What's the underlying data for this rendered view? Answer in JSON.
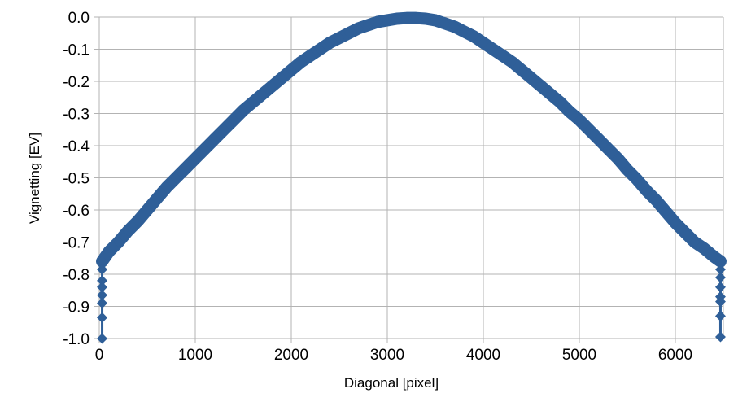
{
  "chart_data": {
    "type": "scatter",
    "title": "",
    "xlabel": "Diagonal [pixel]",
    "ylabel": "Vignetting [EV]",
    "xlim": [
      0,
      6500
    ],
    "ylim": [
      -1.0,
      0.0
    ],
    "xticks": [
      "0",
      "1000",
      "2000",
      "3000",
      "4000",
      "5000",
      "6000"
    ],
    "yticks": [
      "0.0",
      "-0.1",
      "-0.2",
      "-0.3",
      "-0.4",
      "-0.5",
      "-0.6",
      "-0.7",
      "-0.8",
      "-0.9",
      "-1.0"
    ],
    "grid": true,
    "legend": "none",
    "marker": "diamond",
    "color": "#2f5f98",
    "series": [
      {
        "x": [
          30,
          100,
          200,
          300,
          400,
          500,
          600,
          700,
          800,
          900,
          1000,
          1100,
          1200,
          1300,
          1400,
          1500,
          1600,
          1700,
          1800,
          1900,
          2000,
          2100,
          2200,
          2300,
          2400,
          2500,
          2600,
          2700,
          2800,
          2900,
          3000,
          3100,
          3200,
          3300,
          3400,
          3500,
          3600,
          3700,
          3800,
          3900,
          4000,
          4100,
          4200,
          4300,
          4400,
          4500,
          4600,
          4700,
          4800,
          4900,
          5000,
          5100,
          5200,
          5300,
          5400,
          5500,
          5600,
          5700,
          5800,
          5900,
          6000,
          6100,
          6200,
          6300,
          6400,
          6470
        ],
        "y": [
          -0.76,
          -0.73,
          -0.7,
          -0.665,
          -0.635,
          -0.6,
          -0.565,
          -0.53,
          -0.5,
          -0.47,
          -0.44,
          -0.41,
          -0.38,
          -0.35,
          -0.32,
          -0.29,
          -0.265,
          -0.24,
          -0.215,
          -0.19,
          -0.165,
          -0.14,
          -0.12,
          -0.1,
          -0.08,
          -0.065,
          -0.05,
          -0.035,
          -0.025,
          -0.015,
          -0.01,
          -0.005,
          -0.003,
          -0.003,
          -0.005,
          -0.01,
          -0.02,
          -0.03,
          -0.045,
          -0.06,
          -0.08,
          -0.1,
          -0.12,
          -0.14,
          -0.165,
          -0.19,
          -0.215,
          -0.24,
          -0.265,
          -0.295,
          -0.32,
          -0.35,
          -0.38,
          -0.41,
          -0.44,
          -0.475,
          -0.505,
          -0.54,
          -0.57,
          -0.605,
          -0.64,
          -0.67,
          -0.7,
          -0.72,
          -0.745,
          -0.76
        ]
      },
      {
        "x": [
          30,
          30,
          30,
          30,
          30,
          30,
          30
        ],
        "y": [
          -0.785,
          -0.82,
          -0.84,
          -0.865,
          -0.89,
          -0.935,
          -1.0
        ]
      },
      {
        "x": [
          6470,
          6470,
          6470,
          6470,
          6470,
          6470,
          6470
        ],
        "y": [
          -0.785,
          -0.81,
          -0.84,
          -0.87,
          -0.885,
          -0.93,
          -0.995
        ]
      }
    ]
  }
}
